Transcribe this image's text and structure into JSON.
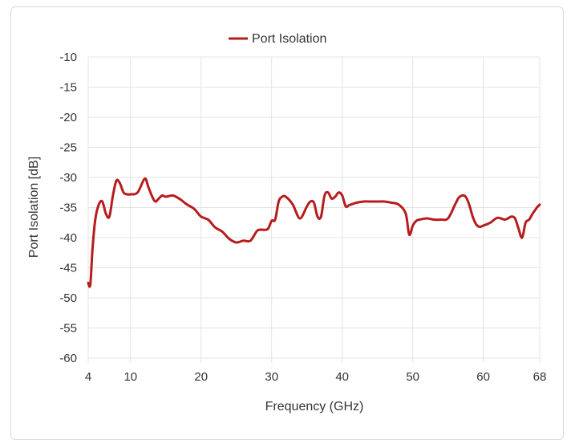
{
  "chart_data": {
    "type": "line",
    "xlabel": "Frequency (GHz)",
    "ylabel": "Port Isolation [dB]",
    "xlim": [
      4,
      68
    ],
    "ylim": [
      -60,
      -10
    ],
    "x_ticks": [
      4,
      10,
      20,
      30,
      40,
      50,
      60,
      68
    ],
    "y_ticks": [
      -10,
      -15,
      -20,
      -25,
      -30,
      -35,
      -40,
      -45,
      -50,
      -55,
      -60
    ],
    "grid": true,
    "legend_position": "top-center",
    "series": [
      {
        "name": "Port Isolation",
        "color": "#b71c1c",
        "x": [
          4.0,
          4.3,
          4.6,
          5.0,
          5.5,
          6.0,
          6.5,
          7.0,
          7.5,
          8.0,
          8.5,
          9.0,
          9.5,
          10.0,
          11.0,
          12.0,
          12.5,
          13.0,
          13.5,
          14.0,
          14.5,
          15.0,
          16.0,
          17.0,
          18.0,
          19.0,
          20.0,
          21.0,
          22.0,
          23.0,
          24.0,
          25.0,
          26.0,
          27.0,
          28.0,
          29.0,
          29.5,
          30.0,
          30.5,
          31.0,
          31.5,
          32.0,
          33.0,
          34.0,
          35.0,
          35.5,
          36.0,
          36.5,
          37.0,
          37.5,
          38.0,
          38.5,
          39.0,
          39.5,
          40.0,
          40.5,
          41.0,
          42.0,
          43.0,
          44.0,
          45.0,
          46.0,
          47.0,
          48.0,
          49.0,
          49.5,
          50.0,
          50.5,
          51.0,
          52.0,
          53.0,
          54.0,
          55.0,
          56.0,
          56.5,
          57.0,
          57.5,
          58.0,
          58.5,
          59.0,
          59.5,
          60.0,
          61.0,
          62.0,
          63.0,
          63.5,
          64.0,
          64.5,
          65.0,
          65.5,
          66.0,
          66.5,
          67.0,
          67.3,
          67.6,
          68.0
        ],
        "y": [
          -47.5,
          -47.8,
          -42.0,
          -37.0,
          -34.5,
          -34.0,
          -36.0,
          -36.5,
          -33.0,
          -30.5,
          -31.0,
          -32.5,
          -32.8,
          -32.8,
          -32.5,
          -30.2,
          -31.5,
          -33.0,
          -34.0,
          -33.5,
          -33.0,
          -33.2,
          -33.0,
          -33.6,
          -34.5,
          -35.2,
          -36.5,
          -37.0,
          -38.3,
          -39.0,
          -40.2,
          -40.8,
          -40.5,
          -40.5,
          -38.8,
          -38.7,
          -38.5,
          -37.2,
          -37.0,
          -34.0,
          -33.2,
          -33.2,
          -34.5,
          -36.8,
          -34.8,
          -34.0,
          -34.2,
          -36.5,
          -36.5,
          -33.0,
          -32.5,
          -33.5,
          -33.2,
          -32.5,
          -33.0,
          -34.8,
          -34.6,
          -34.2,
          -34.0,
          -34.0,
          -34.0,
          -34.0,
          -34.2,
          -34.5,
          -36.0,
          -39.5,
          -38.0,
          -37.2,
          -37.0,
          -36.8,
          -37.0,
          -37.0,
          -36.8,
          -34.5,
          -33.4,
          -33.0,
          -33.2,
          -34.5,
          -36.5,
          -37.8,
          -38.2,
          -38.0,
          -37.5,
          -36.7,
          -37.0,
          -36.8,
          -36.5,
          -36.8,
          -38.5,
          -40.0,
          -37.5,
          -37.0,
          -36.0,
          -35.5,
          -35.0,
          -34.5
        ]
      }
    ]
  }
}
